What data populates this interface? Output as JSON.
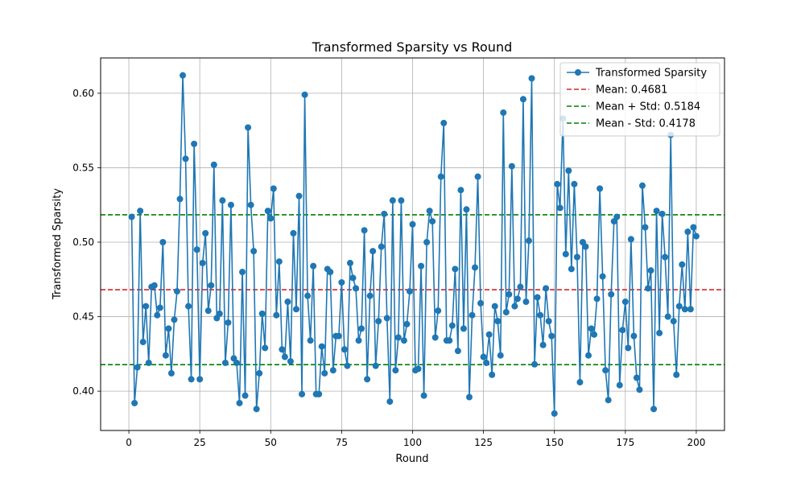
{
  "chart_data": {
    "type": "line",
    "title": "Transformed Sparsity vs Round",
    "xlabel": "Round",
    "ylabel": "Transformed Sparsity",
    "xlim": [
      -9.95,
      209.95
    ],
    "ylim": [
      0.3736,
      0.6237
    ],
    "xticks": [
      0,
      25,
      50,
      75,
      100,
      125,
      150,
      175,
      200
    ],
    "yticks": [
      0.4,
      0.45,
      0.5,
      0.55,
      0.6
    ],
    "xtick_labels": [
      "0",
      "25",
      "50",
      "75",
      "100",
      "125",
      "150",
      "175",
      "200"
    ],
    "ytick_labels": [
      "0.40",
      "0.45",
      "0.50",
      "0.55",
      "0.60"
    ],
    "grid": true,
    "legend_position": "top-right",
    "colors": {
      "series": "#1f77b4",
      "mean": "#d62728",
      "plus": "#008000",
      "minus": "#008000"
    },
    "series": [
      {
        "name": "Transformed Sparsity",
        "x_start": 1,
        "x_step": 1,
        "values": [
          0.517,
          0.392,
          0.416,
          0.521,
          0.433,
          0.457,
          0.419,
          0.47,
          0.471,
          0.451,
          0.456,
          0.5,
          0.424,
          0.442,
          0.412,
          0.448,
          0.467,
          0.529,
          0.612,
          0.556,
          0.457,
          0.408,
          0.566,
          0.495,
          0.408,
          0.486,
          0.506,
          0.454,
          0.471,
          0.552,
          0.449,
          0.452,
          0.528,
          0.419,
          0.446,
          0.525,
          0.422,
          0.419,
          0.392,
          0.48,
          0.397,
          0.577,
          0.525,
          0.494,
          0.388,
          0.412,
          0.452,
          0.429,
          0.521,
          0.516,
          0.536,
          0.451,
          0.487,
          0.428,
          0.423,
          0.46,
          0.42,
          0.506,
          0.455,
          0.531,
          0.398,
          0.599,
          0.464,
          0.434,
          0.484,
          0.398,
          0.398,
          0.43,
          0.412,
          0.482,
          0.48,
          0.414,
          0.437,
          0.437,
          0.473,
          0.428,
          0.417,
          0.486,
          0.476,
          0.469,
          0.434,
          0.442,
          0.508,
          0.408,
          0.464,
          0.494,
          0.417,
          0.447,
          0.497,
          0.519,
          0.449,
          0.393,
          0.528,
          0.414,
          0.436,
          0.528,
          0.434,
          0.445,
          0.467,
          0.512,
          0.414,
          0.415,
          0.484,
          0.397,
          0.5,
          0.521,
          0.514,
          0.436,
          0.454,
          0.544,
          0.58,
          0.434,
          0.434,
          0.444,
          0.482,
          0.427,
          0.535,
          0.442,
          0.522,
          0.396,
          0.451,
          0.483,
          0.544,
          0.459,
          0.423,
          0.419,
          0.438,
          0.411,
          0.457,
          0.447,
          0.424,
          0.587,
          0.453,
          0.465,
          0.551,
          0.457,
          0.462,
          0.47,
          0.596,
          0.46,
          0.501,
          0.61,
          0.418,
          0.463,
          0.451,
          0.431,
          0.469,
          0.447,
          0.437,
          0.385,
          0.539,
          0.523,
          0.583,
          0.492,
          0.548,
          0.482,
          0.539,
          0.49,
          0.406,
          0.5,
          0.497,
          0.424,
          0.442,
          0.438,
          0.462,
          0.536,
          0.477,
          0.414,
          0.394,
          0.465,
          0.514,
          0.517,
          0.404,
          0.441,
          0.46,
          0.429,
          0.502,
          0.437,
          0.409,
          0.401,
          0.538,
          0.51,
          0.469,
          0.481,
          0.388,
          0.521,
          0.439,
          0.519,
          0.49,
          0.45,
          0.572,
          0.447,
          0.411,
          0.457,
          0.485,
          0.455,
          0.507,
          0.455,
          0.51,
          0.504
        ]
      }
    ],
    "hlines": [
      {
        "name": "Mean: 0.4681",
        "y": 0.4681,
        "color_key": "mean"
      },
      {
        "name": "Mean + Std: 0.5184",
        "y": 0.5184,
        "color_key": "plus"
      },
      {
        "name": "Mean - Std: 0.4178",
        "y": 0.4178,
        "color_key": "minus"
      }
    ]
  }
}
